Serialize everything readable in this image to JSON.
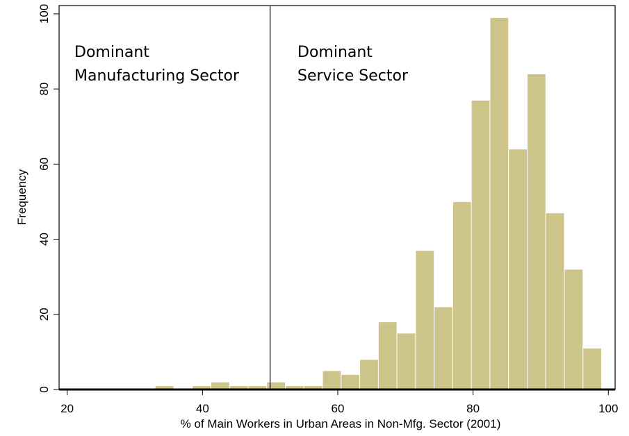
{
  "chart_data": {
    "type": "histogram",
    "xlabel": "% of Main Workers in Urban Areas in Non-Mfg. Sector (2001)",
    "ylabel": "Frequency",
    "bins": [
      33,
      35.75,
      38.5,
      41.25,
      44,
      46.75,
      49.5,
      52.25,
      55,
      57.75,
      60.5,
      63.25,
      66,
      68.75,
      71.5,
      74.25,
      77,
      79.75,
      82.5,
      85.25,
      88,
      90.75,
      93.5,
      96.25,
      99
    ],
    "values": [
      1,
      0,
      1,
      2,
      1,
      1,
      2,
      1,
      1,
      5,
      4,
      8,
      18,
      15,
      37,
      22,
      50,
      77,
      99,
      64,
      84,
      47,
      32,
      11
    ],
    "color": "#cdc48a",
    "xlim": [
      18.8,
      101
    ],
    "xticks": [
      20,
      40,
      60,
      80,
      100
    ],
    "ylim": [
      0,
      102.2
    ],
    "yticks": [
      0,
      20,
      40,
      60,
      80,
      100
    ],
    "vline": 50,
    "annotations": [
      [
        "Dominant",
        "Manufacturing Sector"
      ],
      [
        "Dominant",
        "Service Sector"
      ]
    ]
  }
}
